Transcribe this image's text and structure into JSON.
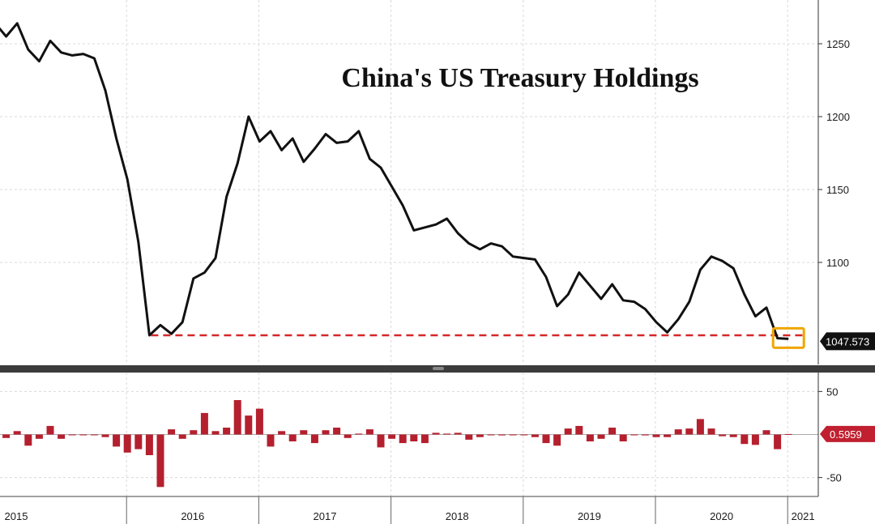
{
  "chart_data": [
    {
      "type": "line",
      "title": "China's US Treasury Holdings",
      "xlabel": "",
      "ylabel": "",
      "ylim": [
        1030,
        1280
      ],
      "yticks": [
        1100,
        1150,
        1200,
        1250
      ],
      "ytick_labels": [
        "1100",
        "1150",
        "1200",
        "1250"
      ],
      "grid": true,
      "x_start": "2015-01",
      "series": [
        {
          "values": [
            1264,
            1255,
            1264,
            1246,
            1238,
            1252,
            1244,
            1242,
            1243,
            1240,
            1218,
            1185,
            1157,
            1114,
            1050,
            1057,
            1051,
            1059,
            1089,
            1093,
            1103,
            1145,
            1168,
            1200,
            1183,
            1190,
            1177,
            1185,
            1169,
            1178,
            1188,
            1182,
            1183,
            1190,
            1171,
            1165,
            1152,
            1139,
            1122,
            1124,
            1126,
            1130,
            1120,
            1113,
            1109,
            1113,
            1111,
            1104,
            1103,
            1102,
            1090,
            1070,
            1078,
            1093,
            1084,
            1075,
            1085,
            1074,
            1073,
            1068,
            1059,
            1052,
            1061,
            1073,
            1095,
            1104,
            1101,
            1096,
            1078,
            1063,
            1069,
            1048,
            1047.573
          ]
        }
      ],
      "reference_line": 1050,
      "last_value_label": "1047.573",
      "colors": {
        "line": "#111111",
        "reference": "#d62728",
        "highlight_box": "#f0a500",
        "last_label_bg": "#111111"
      }
    },
    {
      "type": "bar",
      "ylim": [
        -72,
        72
      ],
      "yticks": [
        50,
        -50
      ],
      "ytick_labels": [
        "50",
        "-50"
      ],
      "grid": true,
      "series": [
        {
          "values": [
            -8,
            -4,
            4,
            -13,
            -5,
            10,
            -5,
            0,
            0,
            0,
            -3,
            -14,
            -21,
            -17,
            -24,
            -61,
            6,
            -5,
            5,
            25,
            4,
            8,
            40,
            22,
            30,
            -14,
            4,
            -8,
            5,
            -10,
            5,
            8,
            -4,
            1,
            6,
            -15,
            -5,
            -10,
            -8,
            -10,
            2,
            1,
            2,
            -6,
            -3,
            0,
            -1,
            0,
            0,
            -3,
            -10,
            -13,
            7,
            10,
            -8,
            -5,
            8,
            -8,
            0,
            -1,
            -3,
            -3,
            6,
            7,
            18,
            7,
            -2,
            -3,
            -11,
            -12,
            5,
            -17,
            0.5959
          ]
        }
      ],
      "last_value_label": "0.5959",
      "colors": {
        "bar": "#b5202e",
        "last_label_bg": "#c02030",
        "zero_line": "#aaaaaa"
      }
    }
  ],
  "x_axis": {
    "year_labels": [
      "2015",
      "2016",
      "2017",
      "2018",
      "2019",
      "2020",
      "2021"
    ],
    "year_start_months": [
      0,
      12,
      24,
      36,
      48,
      60,
      72
    ]
  }
}
